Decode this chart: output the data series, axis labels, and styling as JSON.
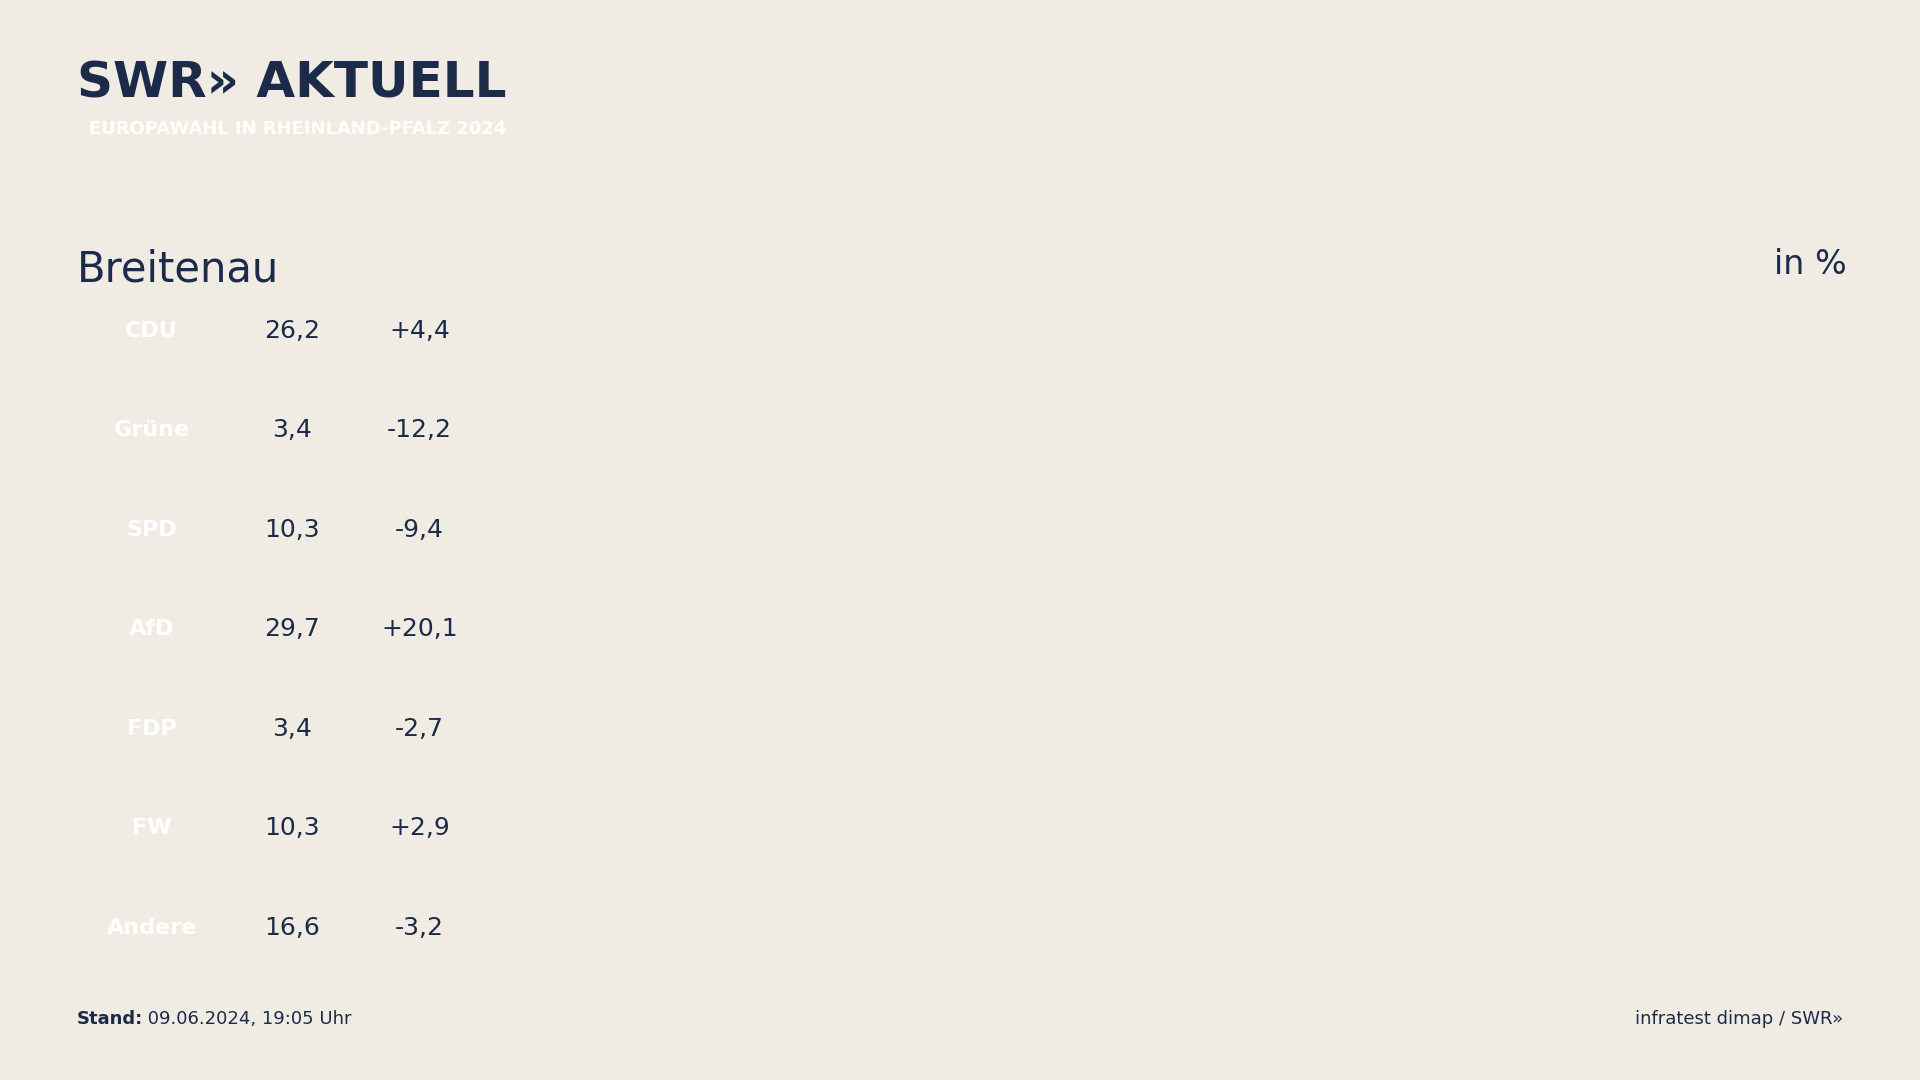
{
  "title_logo": "SWR» AKTUELL",
  "banner_text": "EUROPAWAHL IN RHEINLAND-PFALZ 2024",
  "banner_color": "#E8402A",
  "location": "Breitenau",
  "unit_label": "in %",
  "background_color": "#F0ECE3",
  "label_bg_color": "#1C2B4A",
  "label_text_color": "#FFFFFF",
  "value_bg_color": "#FFFFFF",
  "value_text_color": "#1C2B4A",
  "stand_label": "Stand:",
  "stand_date": " 09.06.2024, 19:05 Uhr",
  "footer_text": "infratest dimap / SWR»",
  "parties": [
    "CDU",
    "Grüne",
    "SPD",
    "AfD",
    "FDP",
    "FW",
    "Andere"
  ],
  "values": [
    26.2,
    3.4,
    10.3,
    29.7,
    3.4,
    10.3,
    16.6
  ],
  "changes": [
    "+4,4",
    "-12,2",
    "-9,4",
    "+20,1",
    "-2,7",
    "+2,9",
    "-3,2"
  ],
  "bar_colors": [
    "#111111",
    "#5DB32B",
    "#CC1A1A",
    "#1515CC",
    "#F5C400",
    "#F5820A",
    "#7A7A7A"
  ],
  "max_value": 29.7
}
